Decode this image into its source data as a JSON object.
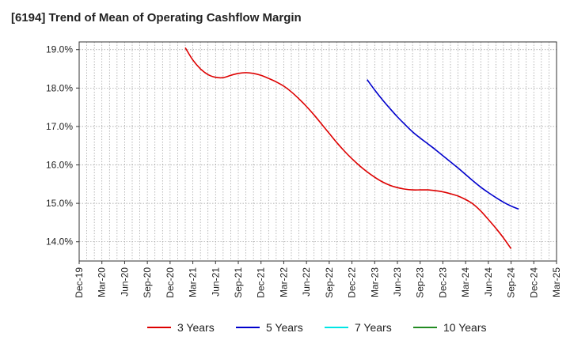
{
  "chart_data": {
    "type": "line",
    "title": "[6194]  Trend of Mean of Operating Cashflow Margin",
    "xlabel": "",
    "ylabel": "",
    "x_ticks": [
      "Dec-19",
      "Mar-20",
      "Jun-20",
      "Sep-20",
      "Dec-20",
      "Mar-21",
      "Jun-21",
      "Sep-21",
      "Dec-21",
      "Mar-22",
      "Jun-22",
      "Sep-22",
      "Dec-22",
      "Mar-23",
      "Jun-23",
      "Sep-23",
      "Dec-23",
      "Mar-24",
      "Jun-24",
      "Sep-24",
      "Dec-24",
      "Mar-25"
    ],
    "y_ticks": [
      "14.0%",
      "15.0%",
      "16.0%",
      "17.0%",
      "18.0%",
      "19.0%"
    ],
    "ylim": [
      13.5,
      19.2
    ],
    "grid": true,
    "legend_position": "bottom",
    "series": [
      {
        "name": "3 Years",
        "color": "#dd0000",
        "points": [
          [
            "Feb-21",
            19.05
          ],
          [
            "Mar-21",
            18.73
          ],
          [
            "Apr-21",
            18.5
          ],
          [
            "May-21",
            18.35
          ],
          [
            "Jun-21",
            18.28
          ],
          [
            "Jul-21",
            18.27
          ],
          [
            "Aug-21",
            18.33
          ],
          [
            "Sep-21",
            18.38
          ],
          [
            "Oct-21",
            18.4
          ],
          [
            "Nov-21",
            18.38
          ],
          [
            "Dec-21",
            18.33
          ],
          [
            "Jan-22",
            18.25
          ],
          [
            "Feb-22",
            18.16
          ],
          [
            "Mar-22",
            18.05
          ],
          [
            "Apr-22",
            17.9
          ],
          [
            "May-22",
            17.72
          ],
          [
            "Jun-22",
            17.52
          ],
          [
            "Jul-22",
            17.3
          ],
          [
            "Aug-22",
            17.06
          ],
          [
            "Sep-22",
            16.82
          ],
          [
            "Oct-22",
            16.58
          ],
          [
            "Nov-22",
            16.36
          ],
          [
            "Dec-22",
            16.16
          ],
          [
            "Jan-23",
            15.98
          ],
          [
            "Feb-23",
            15.82
          ],
          [
            "Mar-23",
            15.68
          ],
          [
            "Apr-23",
            15.56
          ],
          [
            "May-23",
            15.47
          ],
          [
            "Jun-23",
            15.41
          ],
          [
            "Jul-23",
            15.37
          ],
          [
            "Aug-23",
            15.35
          ],
          [
            "Sep-23",
            15.35
          ],
          [
            "Oct-23",
            15.35
          ],
          [
            "Nov-23",
            15.33
          ],
          [
            "Dec-23",
            15.3
          ],
          [
            "Jan-24",
            15.25
          ],
          [
            "Feb-24",
            15.19
          ],
          [
            "Mar-24",
            15.1
          ],
          [
            "Apr-24",
            14.98
          ],
          [
            "May-24",
            14.8
          ],
          [
            "Jun-24",
            14.58
          ],
          [
            "Jul-24",
            14.35
          ],
          [
            "Aug-24",
            14.1
          ],
          [
            "Sep-24",
            13.82
          ]
        ]
      },
      {
        "name": "5 Years",
        "color": "#0000cc",
        "points": [
          [
            "Feb-23",
            18.22
          ],
          [
            "Mar-23",
            17.95
          ],
          [
            "Apr-23",
            17.7
          ],
          [
            "May-23",
            17.47
          ],
          [
            "Jun-23",
            17.25
          ],
          [
            "Jul-23",
            17.05
          ],
          [
            "Aug-23",
            16.86
          ],
          [
            "Sep-23",
            16.7
          ],
          [
            "Oct-23",
            16.55
          ],
          [
            "Nov-23",
            16.4
          ],
          [
            "Dec-23",
            16.24
          ],
          [
            "Jan-24",
            16.08
          ],
          [
            "Feb-24",
            15.92
          ],
          [
            "Mar-24",
            15.75
          ],
          [
            "Apr-24",
            15.58
          ],
          [
            "May-24",
            15.42
          ],
          [
            "Jun-24",
            15.28
          ],
          [
            "Jul-24",
            15.15
          ],
          [
            "Aug-24",
            15.03
          ],
          [
            "Sep-24",
            14.93
          ],
          [
            "Oct-24",
            14.85
          ]
        ]
      },
      {
        "name": "7 Years",
        "color": "#00e5e5",
        "points": []
      },
      {
        "name": "10 Years",
        "color": "#228b22",
        "points": []
      }
    ]
  }
}
